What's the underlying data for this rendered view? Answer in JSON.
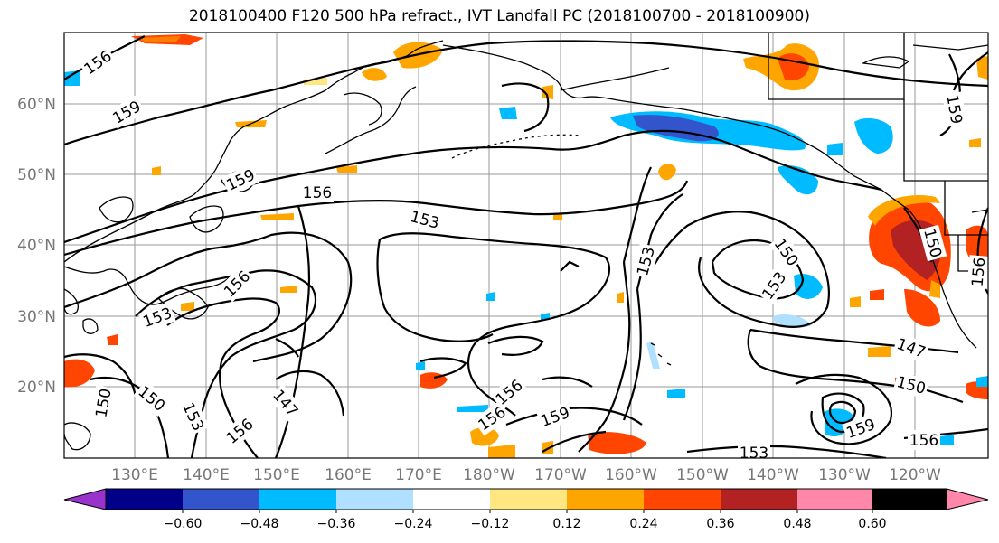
{
  "title": "2018100400 F120 500 hPa refract., IVT Landfall PC (2018100700 - 2018100900)",
  "map": {
    "lat_labels": [
      "60°N",
      "50°N",
      "40°N",
      "30°N",
      "20°N"
    ],
    "lon_labels": [
      "130°E",
      "140°E",
      "150°E",
      "160°E",
      "170°E",
      "180°W",
      "170°W",
      "160°W",
      "150°W",
      "140°W",
      "130°W",
      "120°W"
    ],
    "contour_labels": [
      "156",
      "159",
      "159",
      "156",
      "153",
      "156",
      "153",
      "150",
      "153",
      "147",
      "156",
      "150",
      "153",
      "156",
      "159",
      "156",
      "150",
      "153",
      "147",
      "150",
      "159",
      "156",
      "153",
      "156",
      "159",
      "150"
    ]
  },
  "colorbar": {
    "tick_labels": [
      "−0.60",
      "−0.48",
      "−0.36",
      "−0.24",
      "−0.12",
      "0.12",
      "0.24",
      "0.36",
      "0.48",
      "0.60"
    ],
    "colors": [
      "#9933cc",
      "#000088",
      "#3355cc",
      "#00bbff",
      "#b0e0ff",
      "#ffffff",
      "#ffe680",
      "#ffa500",
      "#ff4500",
      "#b22222",
      "#ff88aa"
    ]
  }
}
